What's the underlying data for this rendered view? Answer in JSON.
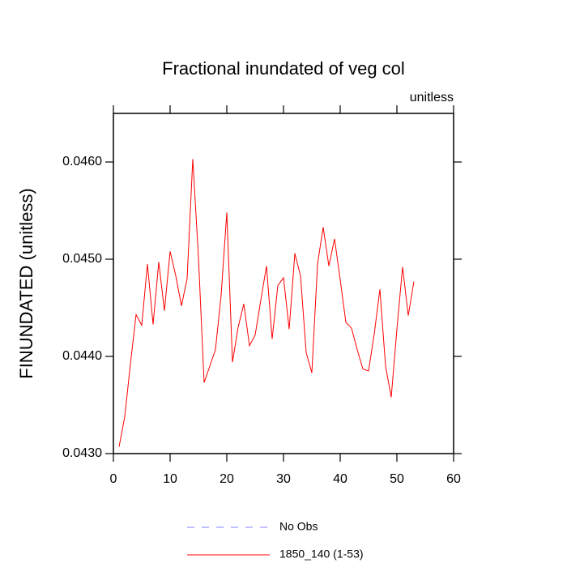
{
  "chart_data": {
    "type": "line",
    "title": "Fractional inundated of veg col",
    "units_label": "unitless",
    "y_label": "FINUNDATED  (unitless)",
    "x": [
      1,
      2,
      3,
      4,
      5,
      6,
      7,
      8,
      9,
      10,
      11,
      12,
      13,
      14,
      15,
      16,
      17,
      18,
      19,
      20,
      21,
      22,
      23,
      24,
      25,
      26,
      27,
      28,
      29,
      30,
      31,
      32,
      33,
      34,
      35,
      36,
      37,
      38,
      39,
      40,
      41,
      42,
      43,
      44,
      45,
      46,
      47,
      48,
      49,
      50,
      51,
      52,
      53
    ],
    "series": [
      {
        "name": "1850_140 (1-53)",
        "color": "#ff0000",
        "values": [
          0.04307,
          0.04338,
          0.04392,
          0.04443,
          0.04432,
          0.04495,
          0.04433,
          0.04497,
          0.04447,
          0.04508,
          0.04483,
          0.04452,
          0.0448,
          0.04603,
          0.04502,
          0.04373,
          0.0439,
          0.04407,
          0.04463,
          0.04548,
          0.04394,
          0.0443,
          0.04454,
          0.04411,
          0.04422,
          0.04458,
          0.04493,
          0.04418,
          0.04473,
          0.04481,
          0.04428,
          0.04506,
          0.04483,
          0.04404,
          0.04383,
          0.04495,
          0.04533,
          0.04493,
          0.04521,
          0.04479,
          0.04435,
          0.04429,
          0.04407,
          0.04387,
          0.04385,
          0.04423,
          0.04469,
          0.0439,
          0.04358,
          0.04428,
          0.04492,
          0.04442,
          0.04477
        ]
      }
    ],
    "extra_legend": [
      {
        "name": "No Obs",
        "color": "#8080ff",
        "dashed": true
      }
    ],
    "xlim": [
      0,
      60
    ],
    "xticks": [
      0,
      10,
      20,
      30,
      40,
      50,
      60
    ],
    "ylim": [
      0.043,
      0.0465
    ],
    "yticks": [
      {
        "value": 0.043,
        "label": "0.0430"
      },
      {
        "value": 0.044,
        "label": "0.0440"
      },
      {
        "value": 0.045,
        "label": "0.0450"
      },
      {
        "value": 0.046,
        "label": "0.0460"
      }
    ]
  }
}
